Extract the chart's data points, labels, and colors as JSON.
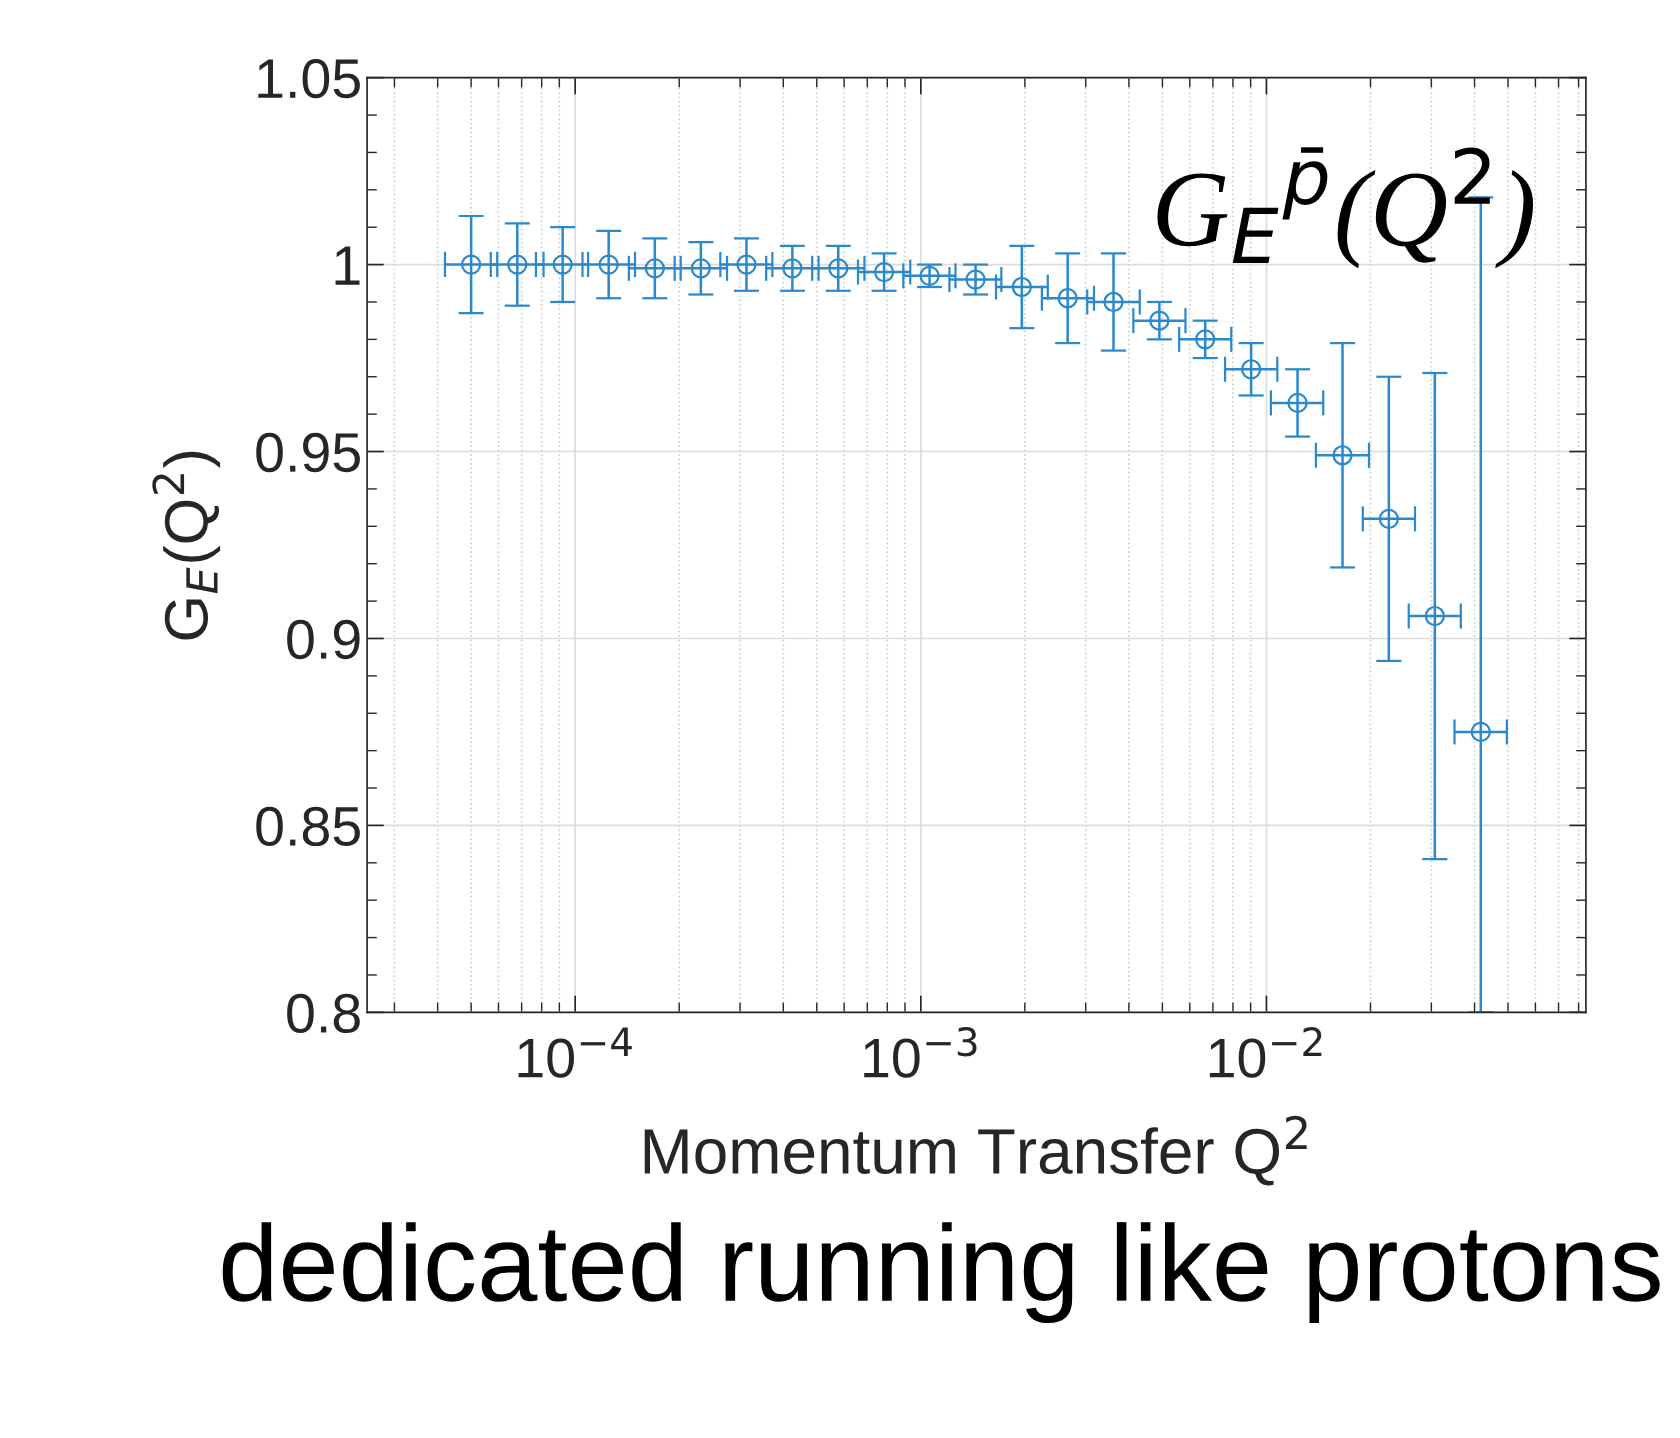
{
  "chart_data": {
    "type": "scatter",
    "xlabel": "Momentum Transfer Q$^{2}$",
    "ylabel": "G$_{E}$(Q$^{2}$)",
    "x": [
      5e-05,
      6.8e-05,
      9.2e-05,
      0.000125,
      0.00017,
      0.000231,
      0.000313,
      0.000425,
      0.000577,
      0.000783,
      0.00106,
      0.00144,
      0.00196,
      0.00266,
      0.00361,
      0.0049,
      0.00665,
      0.00903,
      0.0123,
      0.0166,
      0.0226,
      0.0307,
      0.0417
    ],
    "series": [
      {
        "color": "#2a88cc",
        "values": [
          1.0,
          1.0,
          1.0,
          1.0,
          0.999,
          0.999,
          1.0,
          0.999,
          0.999,
          0.998,
          0.997,
          0.996,
          0.994,
          0.991,
          0.99,
          0.985,
          0.98,
          0.972,
          0.963,
          0.949,
          0.932,
          0.906,
          0.875
        ],
        "errors": [
          0.013,
          0.011,
          0.01,
          0.009,
          0.008,
          0.007,
          0.007,
          0.006,
          0.006,
          0.005,
          0.003,
          0.004,
          0.011,
          0.012,
          0.013,
          0.005,
          0.005,
          0.007,
          0.009,
          0.03,
          0.038,
          0.065,
          [
            0.8,
            1.018
          ]
        ],
        "xerrors": [
          [
            4.2e-05,
            5.95e-05
          ],
          [
            5.7e-05,
            8.1e-05
          ],
          [
            7.7e-05,
            0.000109
          ],
          [
            0.000105,
            0.000149
          ],
          [
            0.000143,
            0.000202
          ],
          [
            0.000194,
            0.000275
          ],
          [
            0.000263,
            0.000372
          ],
          [
            0.000357,
            0.000506
          ],
          [
            0.000485,
            0.000687
          ],
          [
            0.000658,
            0.000932
          ],
          [
            0.00089,
            0.00126
          ],
          [
            0.00121,
            0.00171
          ],
          [
            0.00165,
            0.00233
          ],
          [
            0.00224,
            0.00317
          ],
          [
            0.00303,
            0.0043
          ],
          [
            0.00412,
            0.00583
          ],
          [
            0.00559,
            0.00791
          ],
          [
            0.00759,
            0.01075
          ],
          [
            0.0103,
            0.0146
          ],
          [
            0.0139,
            0.0198
          ],
          [
            0.019,
            0.0269
          ],
          [
            0.0258,
            0.0365
          ],
          [
            0.035,
            0.0496
          ]
        ]
      }
    ],
    "log": "x",
    "xlim": [
      2.5e-05,
      0.084
    ],
    "xticks": [
      {
        "value": 0.0001,
        "label": "10$^{−4}$"
      },
      {
        "value": 0.001,
        "label": "10$^{−3}$"
      },
      {
        "value": 0.01,
        "label": "10$^{−2}$"
      }
    ],
    "ylim": [
      0.8,
      1.05
    ],
    "yticks": [
      0.8,
      0.85,
      0.9,
      0.95,
      1,
      1.05
    ],
    "grid": true,
    "marker": "circle",
    "annotations": [
      "G$_{E}$$^{p̄}$(Q$^{2}$)",
      "dedicated running like protons"
    ]
  }
}
